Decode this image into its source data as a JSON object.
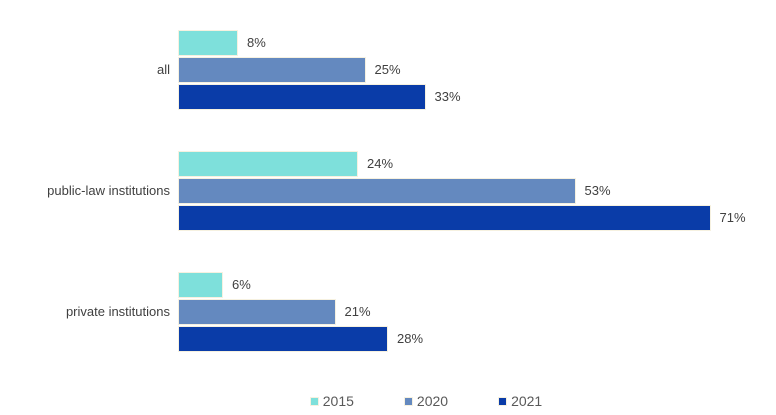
{
  "chart_data": {
    "type": "bar",
    "orientation": "horizontal",
    "title": "",
    "categories": [
      "all",
      "public-law institutions",
      "private institutions"
    ],
    "series": [
      {
        "name": "2015",
        "color": "#7ee0db",
        "values": [
          8,
          24,
          6
        ]
      },
      {
        "name": "2020",
        "color": "#6489bf",
        "values": [
          25,
          53,
          21
        ]
      },
      {
        "name": "2021",
        "color": "#0a3ca8",
        "values": [
          33,
          71,
          28
        ]
      }
    ],
    "unit": "%",
    "xlim": [
      0,
      75
    ],
    "grid": false,
    "axis_lines": false,
    "value_labels": true,
    "legend_position": "bottom",
    "legend_labels": [
      "2015",
      "2020",
      "2021"
    ],
    "colors": {
      "background": "#ffffff",
      "label_text": "#404040",
      "legend_text": "#595959",
      "bar_border": "#f6f1e0"
    }
  }
}
